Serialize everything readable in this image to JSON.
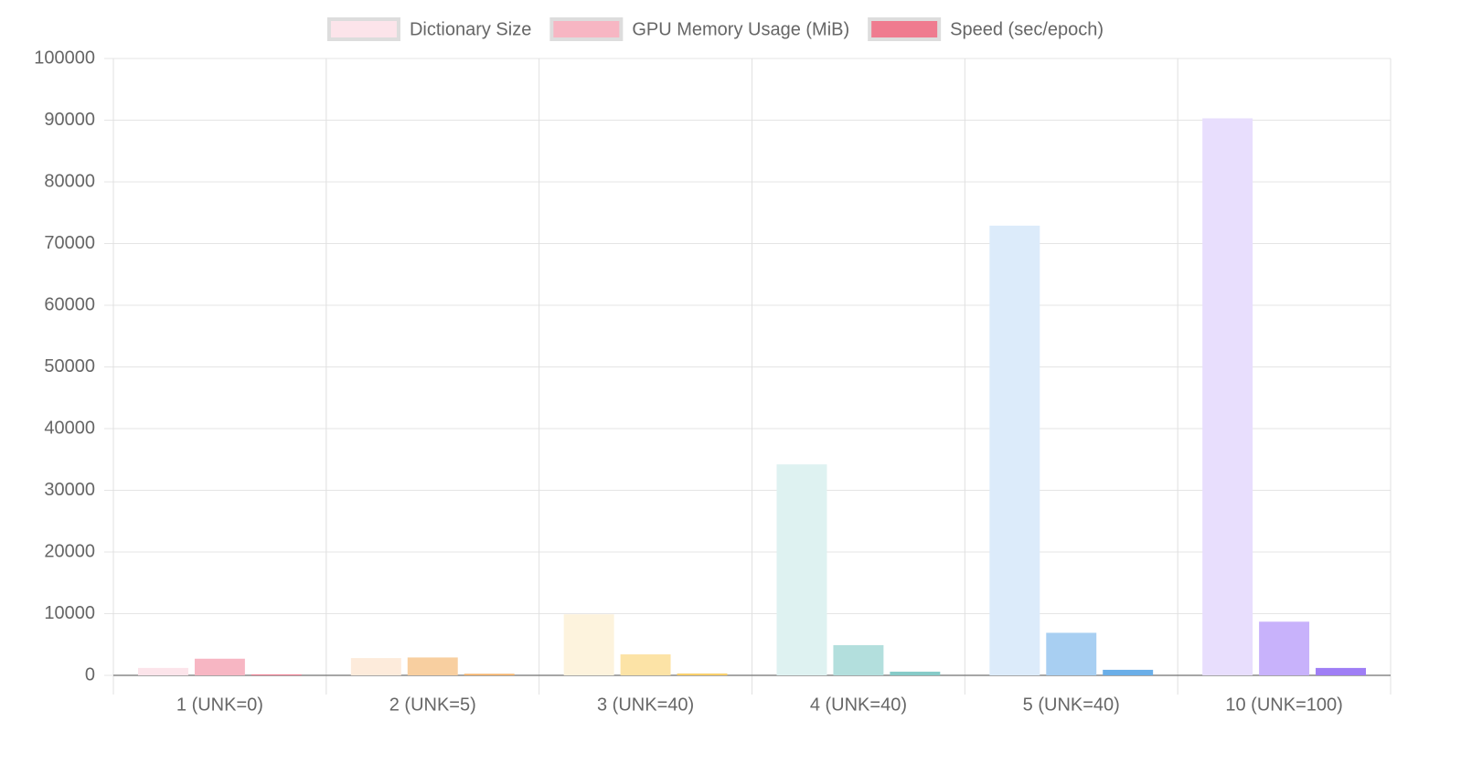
{
  "chart_data": {
    "type": "bar",
    "categories": [
      "1 (UNK=0)",
      "2 (UNK=5)",
      "3 (UNK=40)",
      "4 (UNK=40)",
      "5 (UNK=40)",
      "10 (UNK=100)"
    ],
    "series": [
      {
        "name": "Dictionary Size",
        "color": "#fce4ea",
        "colors": [
          "#fce4ea",
          "#fdebdb",
          "#fdf3dd",
          "#def2f1",
          "#dcebfa",
          "#e8defd"
        ],
        "values": [
          1200,
          2800,
          9900,
          34200,
          72900,
          90300
        ]
      },
      {
        "name": "GPU Memory Usage (MiB)",
        "color": "#f7b6c3",
        "colors": [
          "#f7b6c3",
          "#f8cfa0",
          "#fce3a6",
          "#b3dfdd",
          "#a8cff2",
          "#c8b2fb"
        ],
        "values": [
          2700,
          2900,
          3400,
          4900,
          6900,
          8700
        ]
      },
      {
        "name": "Speed (sec/epoch)",
        "color": "#ef7b8f",
        "colors": [
          "#ef7b8f",
          "#f4b26a",
          "#f9cf6b",
          "#86cbc8",
          "#6aaee8",
          "#9f7ef5"
        ],
        "values": [
          150,
          250,
          300,
          600,
          900,
          1200
        ]
      }
    ],
    "ylim": [
      0,
      100000
    ],
    "yticks": [
      0,
      10000,
      20000,
      30000,
      40000,
      50000,
      60000,
      70000,
      80000,
      90000,
      100000
    ],
    "grid": true,
    "legend": "top"
  }
}
